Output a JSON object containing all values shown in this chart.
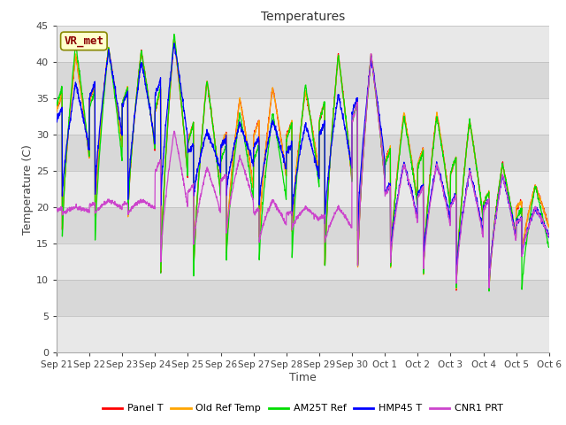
{
  "title": "Temperatures",
  "xlabel": "Time",
  "ylabel": "Temperature (C)",
  "ylim": [
    0,
    45
  ],
  "yticks": [
    0,
    5,
    10,
    15,
    20,
    25,
    30,
    35,
    40,
    45
  ],
  "bg_light": "#f0f0f0",
  "bg_dark": "#dcdcdc",
  "legend_label": "VR_met",
  "series": {
    "Panel T": {
      "color": "#ff0000"
    },
    "Old Ref Temp": {
      "color": "#ffa500"
    },
    "AM25T Ref": {
      "color": "#00dd00"
    },
    "HMP45 T": {
      "color": "#0000ff"
    },
    "CNR1 PRT": {
      "color": "#cc44cc"
    }
  },
  "x_tick_labels": [
    "Sep 21",
    "Sep 22",
    "Sep 23",
    "Sep 24",
    "Sep 25",
    "Sep 26",
    "Sep 27",
    "Sep 28",
    "Sep 29",
    "Sep 30",
    "Oct 1",
    "Oct 2",
    "Oct 3",
    "Oct 4",
    "Oct 5",
    "Oct 6"
  ],
  "n_days": 15,
  "pts_per_day": 144,
  "day_maxes": [
    41,
    42,
    41.5,
    43.5,
    37.5,
    35,
    36.5,
    36,
    41,
    41,
    33,
    33,
    32,
    26,
    23
  ],
  "day_mins": [
    16,
    18,
    18,
    10,
    10,
    13,
    15,
    16,
    11,
    11,
    11,
    10,
    8,
    8,
    13
  ],
  "am25t_day_maxes": [
    42.5,
    42,
    41.5,
    44,
    37.5,
    33,
    33,
    37,
    41,
    41,
    32.5,
    32.5,
    32,
    26,
    23
  ],
  "am25t_day_mins": [
    15,
    14.5,
    18,
    9.5,
    9.5,
    12,
    12,
    12,
    11,
    11,
    11,
    10,
    8,
    8,
    8
  ],
  "hmp45_day_maxes": [
    37,
    41.5,
    40,
    42.5,
    30.5,
    31.5,
    32,
    31.5,
    35.5,
    40.5,
    26,
    26,
    25,
    24.5,
    20
  ],
  "hmp45_day_mins": [
    21,
    21,
    20.5,
    19.5,
    21,
    21.5,
    20,
    18.5,
    17.5,
    16,
    13,
    12.5,
    10,
    9,
    13
  ],
  "cnr1_day_maxes": [
    20,
    21,
    21,
    30.5,
    25.5,
    27,
    21,
    20,
    20,
    41,
    26,
    26,
    25,
    24.5,
    20
  ],
  "cnr1_day_mins": [
    19,
    19,
    19,
    12,
    14.5,
    16,
    15,
    17,
    15,
    11,
    12,
    11,
    9,
    8.5,
    13
  ]
}
